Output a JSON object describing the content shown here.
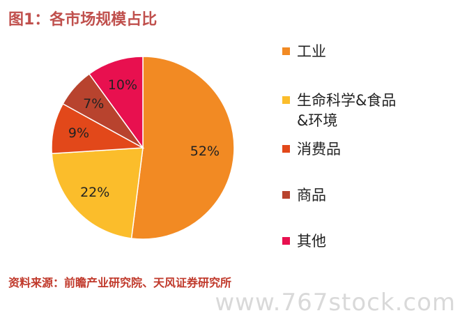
{
  "title": "图1：各市场规模占比",
  "source": "资料来源：前瞻产业研究院、天风证券研究所",
  "watermark": "www.767stock.com",
  "chart_data": {
    "type": "pie",
    "title": "图1：各市场规模占比",
    "start_angle_deg": 0,
    "direction": "clockwise",
    "legend_position": "right",
    "slices": [
      {
        "label": "工业",
        "value": 52,
        "display": "52%",
        "color": "#f28a23"
      },
      {
        "label": "生命科学&食品\n&环境",
        "value": 22,
        "display": "22%",
        "color": "#fbbd2b"
      },
      {
        "label": "消费品",
        "value": 9,
        "display": "9%",
        "color": "#e2481a"
      },
      {
        "label": "商品",
        "value": 7,
        "display": "7%",
        "color": "#b8432e"
      },
      {
        "label": "其他",
        "value": 10,
        "display": "10%",
        "color": "#e8104f"
      }
    ]
  }
}
